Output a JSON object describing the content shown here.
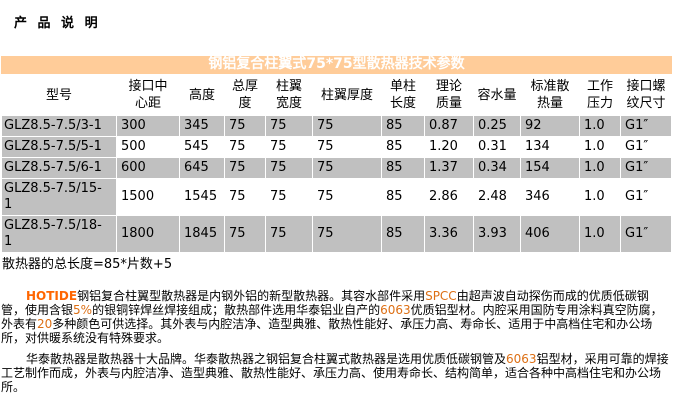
{
  "title": "产 品 说 明",
  "table": {
    "caption": "钢铝复合柱翼式75*75型散热器技术参数",
    "columns": [
      "型号",
      "接口中\n心距",
      "高度",
      "总厚\n度",
      "柱翼\n宽度",
      "柱翼厚度",
      "单柱\n长度",
      "理论\n质量",
      "容水量",
      "标准散\n热量",
      "工作\n压力",
      "接口螺\n纹尺寸"
    ],
    "rows": [
      {
        "model": "GLZ8.5-7.5/3-1",
        "values": [
          "300",
          "345",
          "75",
          "75",
          "75",
          "85",
          "0.87",
          "0.25",
          "92",
          "1.0",
          "G1″"
        ],
        "shaded": true
      },
      {
        "model": "GLZ8.5-7.5/5-1",
        "values": [
          "500",
          "545",
          "75",
          "75",
          "75",
          "85",
          "1.20",
          "0.31",
          "134",
          "1.0",
          "G1″"
        ],
        "shaded": false
      },
      {
        "model": "GLZ8.5-7.5/6-1",
        "values": [
          "600",
          "645",
          "75",
          "75",
          "75",
          "85",
          "1.37",
          "0.34",
          "154",
          "1.0",
          "G1″"
        ],
        "shaded": true
      },
      {
        "model": "GLZ8.5-7.5/15-\n1",
        "values": [
          "1500",
          "1545",
          "75",
          "75",
          "75",
          "85",
          "2.86",
          "2.48",
          "346",
          "1.0",
          "G1″"
        ],
        "shaded": false
      },
      {
        "model": "GLZ8.5-7.5/18-\n1",
        "values": [
          "1800",
          "1845",
          "75",
          "75",
          "75",
          "85",
          "3.36",
          "3.93",
          "406",
          "1.0",
          "G1″"
        ],
        "shaded": true
      }
    ]
  },
  "note": "散热器的总长度=85*片数+5",
  "paragraphs": [
    {
      "segments": [
        {
          "t": "HOTIDE",
          "cls": "brand"
        },
        {
          "t": "钢铝复合柱翼型散热器是内钢外铝的新型散热器。其容水部件采用"
        },
        {
          "t": "SPCC",
          "cls": "kw"
        },
        {
          "t": "由超声波自动探伤而成的优质低碳钢管，使用含银"
        },
        {
          "t": "5%",
          "cls": "kw"
        },
        {
          "t": "的银铜锌焊丝焊接组成；散热部件选用华泰铝业自产的"
        },
        {
          "t": "6063",
          "cls": "kw"
        },
        {
          "t": "优质铝型材。内腔采用国防专用涂料真空防腐，外表有"
        },
        {
          "t": "20",
          "cls": "kw"
        },
        {
          "t": "多种颜色可供选择。其外表与内腔洁净、造型典雅、散热性能好、承压力高、寿命长、适用于中高档住宅和办公场所，对供暖系统没有特殊要求。"
        }
      ]
    },
    {
      "segments": [
        {
          "t": "华泰散热器是散热器十大品牌。华泰散热器之钢铝复合柱翼式散热器是选用优质低碳钢管及"
        },
        {
          "t": "6063",
          "cls": "kw"
        },
        {
          "t": "铝型材，采用可靠的焊接工艺制作而成，外表与内腔洁净、造型典雅、散热性能好、承压力高、使用寿命长、结构简单，适合各种中高档住宅和办公场所。"
        }
      ]
    }
  ],
  "colors": {
    "banner_bg": "#FFCC99",
    "banner_text": "#FFFFFF",
    "row_shaded": "#C0C0C0",
    "keyword": "#DD6F14",
    "brand": "#FF6600"
  }
}
